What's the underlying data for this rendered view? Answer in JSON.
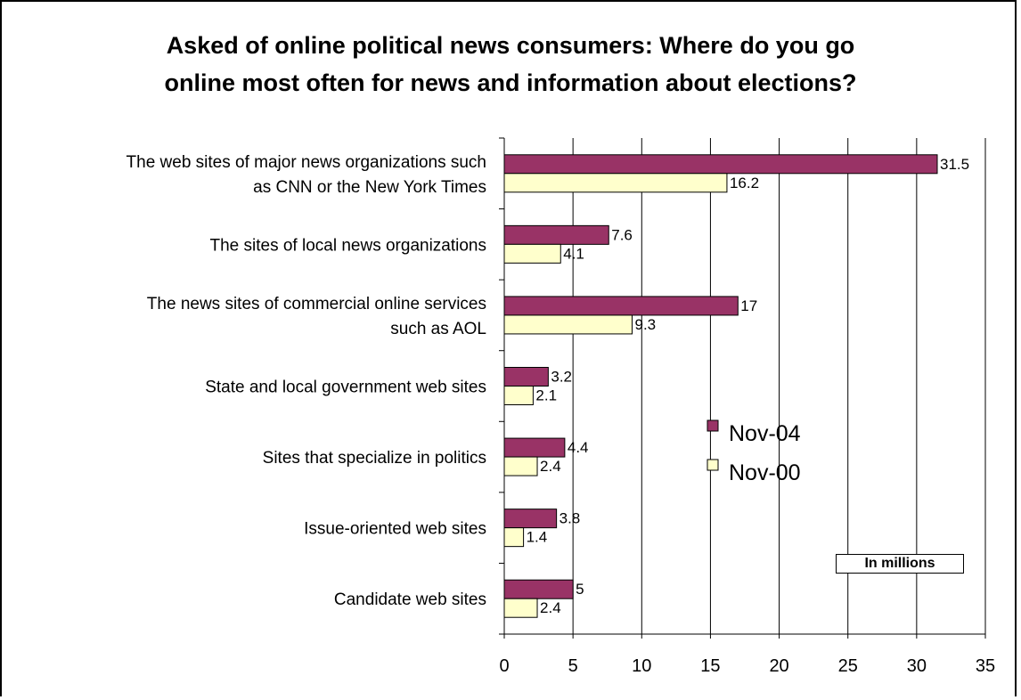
{
  "chart_data": {
    "type": "bar",
    "orientation": "horizontal",
    "title_lines": [
      "Asked of online political news consumers: Where do you go",
      "online most often for news and information about elections?"
    ],
    "categories": [
      [
        "The web sites of major news organizations such",
        "as CNN or the New York Times"
      ],
      [
        "The sites of local news organizations"
      ],
      [
        "The news sites of commercial online services",
        "such as AOL"
      ],
      [
        "State and local government web sites"
      ],
      [
        "Sites that specialize in politics"
      ],
      [
        "Issue-oriented web sites"
      ],
      [
        "Candidate web sites"
      ]
    ],
    "series": [
      {
        "name": "Nov-04",
        "color": "#993366",
        "values": [
          31.5,
          7.6,
          17,
          3.2,
          4.4,
          3.8,
          5
        ]
      },
      {
        "name": "Nov-00",
        "color": "#ffffcc",
        "values": [
          16.2,
          4.1,
          9.3,
          2.1,
          2.4,
          1.4,
          2.4
        ]
      }
    ],
    "data_labels": [
      [
        "31.5",
        "7.6",
        "17",
        "3.2",
        "4.4",
        "3.8",
        "5"
      ],
      [
        "16.2",
        "4.1",
        "9.3",
        "2.1",
        "2.4",
        "1.4",
        "2.4"
      ]
    ],
    "xlim": [
      0,
      35
    ],
    "xticks": [
      0,
      5,
      10,
      15,
      20,
      25,
      30,
      35
    ],
    "grid": "vertical",
    "legend_position": "center-right",
    "note": "In millions"
  }
}
